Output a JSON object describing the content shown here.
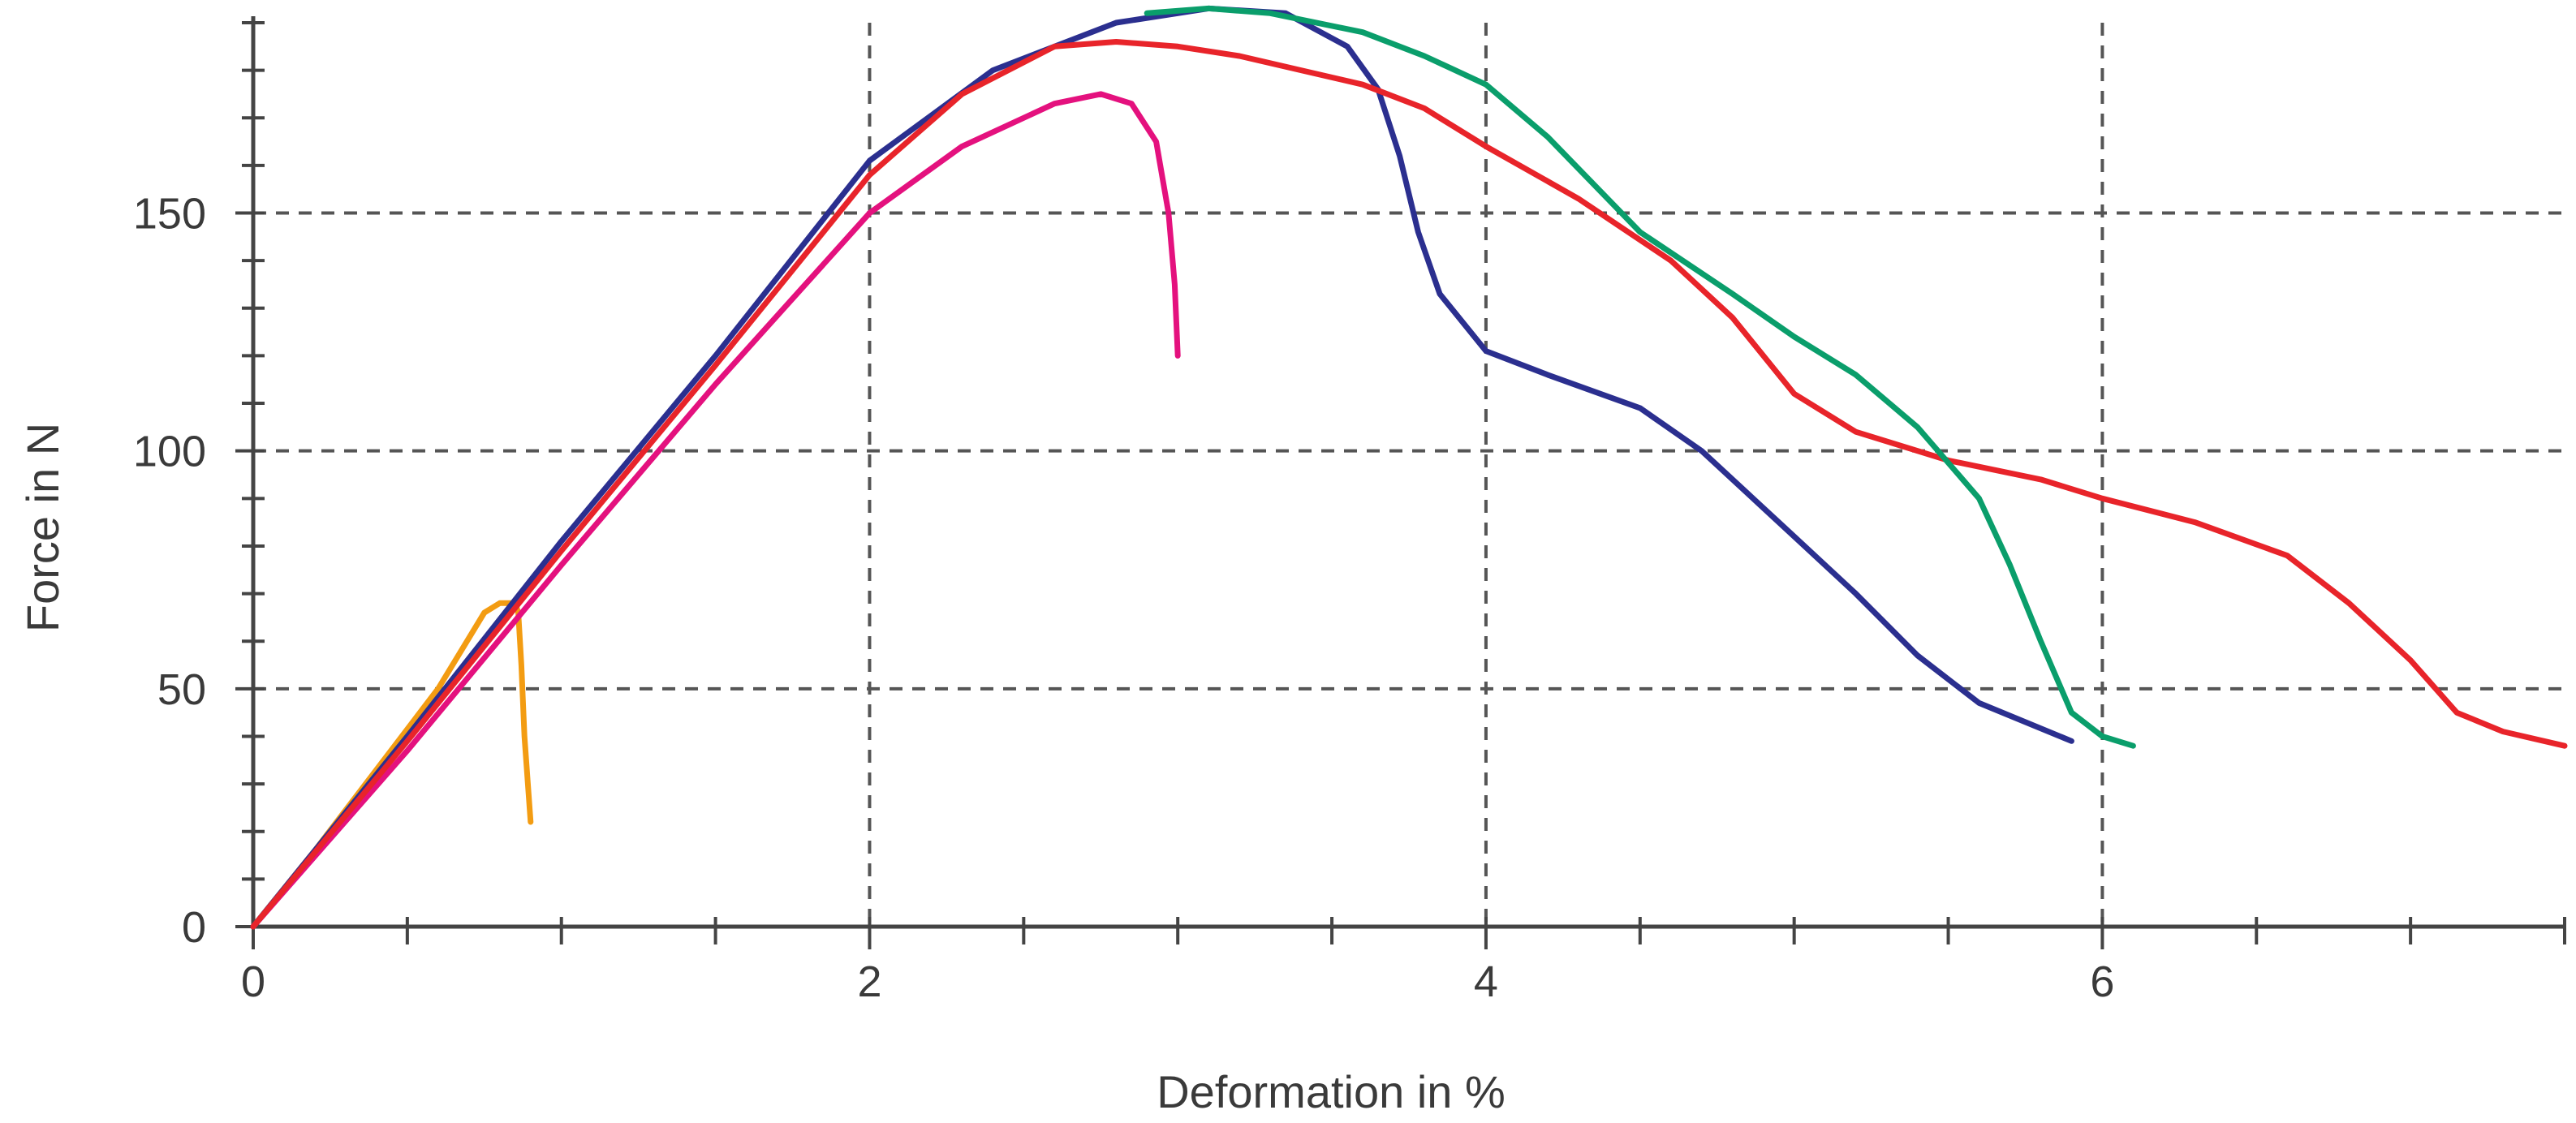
{
  "chart_data": {
    "type": "line",
    "title": "",
    "xlabel": "Deformation in %",
    "ylabel": "Force in N",
    "xlim": [
      0,
      7.5
    ],
    "ylim": [
      0,
      190
    ],
    "x_ticks": [
      0,
      2,
      4,
      6
    ],
    "y_ticks": [
      0,
      50,
      100,
      150
    ],
    "x_minor_step": 0.5,
    "y_minor_step": 10,
    "grid": true,
    "grid_style": "dashed",
    "series": [
      {
        "color": "#f39c12",
        "points": [
          [
            0,
            0
          ],
          [
            0.2,
            16
          ],
          [
            0.4,
            33
          ],
          [
            0.6,
            50
          ],
          [
            0.75,
            66
          ],
          [
            0.8,
            68
          ],
          [
            0.85,
            68
          ],
          [
            0.86,
            66
          ],
          [
            0.87,
            55
          ],
          [
            0.88,
            40
          ],
          [
            0.9,
            22
          ]
        ]
      },
      {
        "color": "#e4117e",
        "points": [
          [
            0,
            0
          ],
          [
            0.5,
            37
          ],
          [
            1,
            76
          ],
          [
            1.5,
            114
          ],
          [
            2,
            150
          ],
          [
            2.3,
            164
          ],
          [
            2.6,
            173
          ],
          [
            2.75,
            175
          ],
          [
            2.85,
            173
          ],
          [
            2.93,
            165
          ],
          [
            2.97,
            150
          ],
          [
            2.99,
            135
          ],
          [
            3.0,
            120
          ]
        ]
      },
      {
        "color": "#2b2f8f",
        "points": [
          [
            0,
            0
          ],
          [
            0.5,
            40
          ],
          [
            1,
            81
          ],
          [
            1.5,
            120
          ],
          [
            2,
            161
          ],
          [
            2.4,
            180
          ],
          [
            2.8,
            190
          ],
          [
            3.1,
            193
          ],
          [
            3.35,
            192
          ],
          [
            3.55,
            185
          ],
          [
            3.65,
            176
          ],
          [
            3.72,
            162
          ],
          [
            3.78,
            146
          ],
          [
            3.85,
            133
          ],
          [
            4.0,
            121
          ],
          [
            4.2,
            116
          ],
          [
            4.5,
            109
          ],
          [
            4.7,
            100
          ],
          [
            5.0,
            82
          ],
          [
            5.2,
            70
          ],
          [
            5.4,
            57
          ],
          [
            5.6,
            47
          ],
          [
            5.9,
            39
          ]
        ]
      },
      {
        "color": "#e8242a",
        "points": [
          [
            0,
            0
          ],
          [
            0.5,
            39
          ],
          [
            1,
            79
          ],
          [
            1.5,
            118
          ],
          [
            2,
            158
          ],
          [
            2.3,
            175
          ],
          [
            2.6,
            185
          ],
          [
            2.8,
            186
          ],
          [
            3.0,
            185
          ],
          [
            3.2,
            183
          ],
          [
            3.4,
            180
          ],
          [
            3.6,
            177
          ],
          [
            3.8,
            172
          ],
          [
            4.0,
            164
          ],
          [
            4.3,
            153
          ],
          [
            4.6,
            140
          ],
          [
            4.8,
            128
          ],
          [
            5.0,
            112
          ],
          [
            5.2,
            104
          ],
          [
            5.5,
            98
          ],
          [
            5.8,
            94
          ],
          [
            6.0,
            90
          ],
          [
            6.3,
            85
          ],
          [
            6.6,
            78
          ],
          [
            6.8,
            68
          ],
          [
            7.0,
            56
          ],
          [
            7.15,
            45
          ],
          [
            7.3,
            41
          ],
          [
            7.5,
            38
          ]
        ]
      },
      {
        "color": "#0a9e6b",
        "points": [
          [
            2.9,
            192
          ],
          [
            3.1,
            193
          ],
          [
            3.3,
            192
          ],
          [
            3.6,
            188
          ],
          [
            3.8,
            183
          ],
          [
            4.0,
            177
          ],
          [
            4.2,
            166
          ],
          [
            4.5,
            146
          ],
          [
            4.8,
            133
          ],
          [
            5.0,
            124
          ],
          [
            5.2,
            116
          ],
          [
            5.4,
            105
          ],
          [
            5.6,
            90
          ],
          [
            5.7,
            76
          ],
          [
            5.8,
            60
          ],
          [
            5.9,
            45
          ],
          [
            6.0,
            40
          ],
          [
            6.1,
            38
          ]
        ]
      }
    ]
  }
}
